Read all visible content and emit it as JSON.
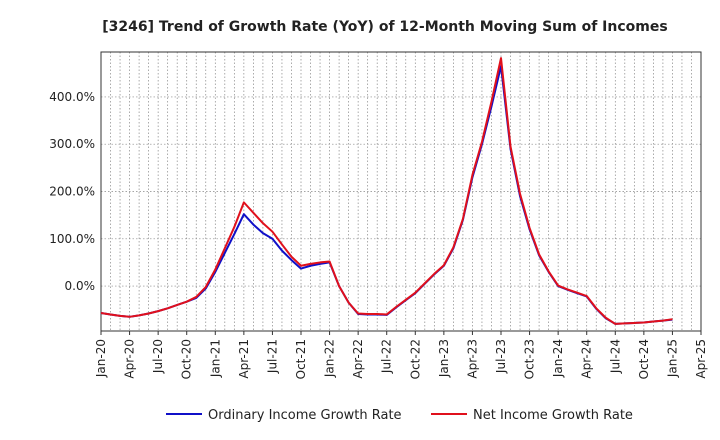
{
  "chart_data": {
    "type": "line",
    "title": "[3246]  Trend of Growth Rate (YoY) of 12-Month Moving Sum of Incomes",
    "xlabel": "",
    "ylabel": "",
    "x_tick_labels": [
      "Jan-20",
      "Apr-20",
      "Jul-20",
      "Oct-20",
      "Jan-21",
      "Apr-21",
      "Jul-21",
      "Oct-21",
      "Jan-22",
      "Apr-22",
      "Jul-22",
      "Oct-22",
      "Jan-23",
      "Apr-23",
      "Jul-23",
      "Oct-23",
      "Jan-24",
      "Apr-24",
      "Jul-24",
      "Oct-24",
      "Jan-25",
      "Apr-25"
    ],
    "y_ticks": [
      0,
      100,
      200,
      300,
      400
    ],
    "y_tick_labels": [
      "0.0%",
      "100.0%",
      "200.0%",
      "300.0%",
      "400.0%"
    ],
    "ylim": [
      -95,
      495
    ],
    "grid": true,
    "legend_position": "bottom",
    "months": [
      "2020-01",
      "2020-02",
      "2020-03",
      "2020-04",
      "2020-05",
      "2020-06",
      "2020-07",
      "2020-08",
      "2020-09",
      "2020-10",
      "2020-11",
      "2020-12",
      "2021-01",
      "2021-02",
      "2021-03",
      "2021-04",
      "2021-05",
      "2021-06",
      "2021-07",
      "2021-08",
      "2021-09",
      "2021-10",
      "2021-11",
      "2021-12",
      "2022-01",
      "2022-02",
      "2022-03",
      "2022-04",
      "2022-05",
      "2022-06",
      "2022-07",
      "2022-08",
      "2022-09",
      "2022-10",
      "2022-11",
      "2022-12",
      "2023-01",
      "2023-02",
      "2023-03",
      "2023-04",
      "2023-05",
      "2023-06",
      "2023-07",
      "2023-08",
      "2023-09",
      "2023-10",
      "2023-11",
      "2023-12",
      "2024-01",
      "2024-02",
      "2024-03",
      "2024-04",
      "2024-05",
      "2024-06",
      "2024-07",
      "2024-08",
      "2024-09",
      "2024-10",
      "2024-11",
      "2024-12",
      "2025-01"
    ],
    "series": [
      {
        "name": "Ordinary Income Growth Rate",
        "color": "#1010c8",
        "values": [
          -57,
          -60,
          -63,
          -65,
          -62,
          -58,
          -53,
          -47,
          -40,
          -33,
          -25,
          -5,
          30,
          70,
          110,
          152,
          130,
          112,
          100,
          75,
          55,
          37,
          43,
          47,
          50,
          0,
          -35,
          -59,
          -60,
          -60,
          -61,
          -45,
          -30,
          -15,
          5,
          25,
          43,
          80,
          140,
          230,
          300,
          380,
          465,
          290,
          190,
          120,
          65,
          30,
          0,
          -8,
          -15,
          -22,
          -48,
          -68,
          -80,
          -79,
          -78,
          -77,
          -75,
          -73,
          -71
        ]
      },
      {
        "name": "Net Income Growth Rate",
        "color": "#e0101c",
        "values": [
          -57,
          -60,
          -63,
          -65,
          -62,
          -58,
          -53,
          -47,
          -40,
          -33,
          -23,
          -2,
          35,
          80,
          125,
          177,
          155,
          133,
          115,
          88,
          62,
          43,
          47,
          50,
          52,
          0,
          -35,
          -58,
          -59,
          -59,
          -60,
          -44,
          -29,
          -14,
          6,
          26,
          44,
          82,
          142,
          235,
          305,
          390,
          482,
          295,
          195,
          123,
          67,
          31,
          1,
          -7,
          -14,
          -21,
          -47,
          -67,
          -80,
          -79,
          -78,
          -77,
          -75,
          -73,
          -70
        ]
      }
    ]
  }
}
